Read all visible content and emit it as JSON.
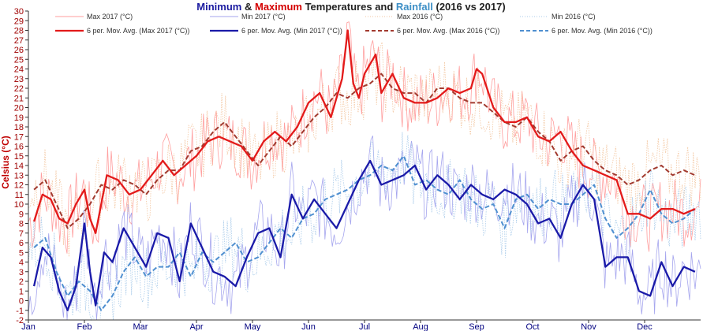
{
  "chart_data": {
    "type": "line",
    "title_runs": [
      {
        "text": "Minimum",
        "color": "#1a1aa0"
      },
      {
        "text": " & ",
        "color": "#222222"
      },
      {
        "text": "Maximum",
        "color": "#d40000"
      },
      {
        "text": " Temperatures and ",
        "color": "#222222"
      },
      {
        "text": "Rainfall",
        "color": "#3d8fc6"
      },
      {
        "text": " (2016 vs 2017)",
        "color": "#222222"
      }
    ],
    "ylabel": "Celsius (°C)",
    "ylim": [
      -2,
      30
    ],
    "yticks": [
      -2,
      -1,
      0,
      1,
      2,
      3,
      4,
      5,
      6,
      7,
      8,
      9,
      10,
      11,
      12,
      13,
      14,
      15,
      16,
      17,
      18,
      19,
      20,
      21,
      22,
      23,
      24,
      25,
      26,
      27,
      28,
      29,
      30
    ],
    "xlim": [
      0,
      12
    ],
    "months": [
      "Jan",
      "Feb",
      "Mar",
      "Apr",
      "May",
      "Jun",
      "Jul",
      "Aug",
      "Sep",
      "Oct",
      "Nov",
      "Dec"
    ],
    "grid": false,
    "legend_position": "top",
    "series": [
      {
        "name": "Max 2017 (°C)",
        "color": "#ff9e9e",
        "style": "thin",
        "key": "max17raw"
      },
      {
        "name": "Min 2017 (°C)",
        "color": "#a6a6ee",
        "style": "thin",
        "key": "min17raw"
      },
      {
        "name": "Max 2016 (°C)",
        "color": "#f3c6a0",
        "style": "thin-dot",
        "key": "max16raw"
      },
      {
        "name": "Min 2016 (°C)",
        "color": "#a9cbea",
        "style": "thin-dot",
        "key": "min16raw"
      },
      {
        "name": "6 per. Mov. Avg. (Max 2017 (°C))",
        "color": "#e31a1a",
        "style": "solid",
        "key": "max17ma",
        "x": [
          0.1,
          0.25,
          0.4,
          0.55,
          0.7,
          0.85,
          1.0,
          1.1,
          1.2,
          1.4,
          1.6,
          1.8,
          2.0,
          2.2,
          2.4,
          2.6,
          2.8,
          3.0,
          3.2,
          3.4,
          3.6,
          3.8,
          4.0,
          4.2,
          4.4,
          4.6,
          4.8,
          5.0,
          5.2,
          5.4,
          5.6,
          5.7,
          5.8,
          5.9,
          6.0,
          6.2,
          6.3,
          6.5,
          6.7,
          6.9,
          7.1,
          7.3,
          7.5,
          7.7,
          7.9,
          8.0,
          8.1,
          8.3,
          8.5,
          8.7,
          8.9,
          9.1,
          9.3,
          9.5,
          9.7,
          9.9,
          10.1,
          10.3,
          10.5,
          10.7,
          10.9,
          11.1,
          11.3,
          11.5,
          11.7,
          11.9
        ],
        "y": [
          8.2,
          11.0,
          10.5,
          8.5,
          8.0,
          10.0,
          11.5,
          8.5,
          7.0,
          13.0,
          12.5,
          11.0,
          11.5,
          13.0,
          14.5,
          13.0,
          14.0,
          15.0,
          16.5,
          17.0,
          16.5,
          16.0,
          14.5,
          16.5,
          17.5,
          16.5,
          18.0,
          20.5,
          21.5,
          19.0,
          23.0,
          28.0,
          22.5,
          21.0,
          23.5,
          25.5,
          21.5,
          23.5,
          21.0,
          20.5,
          20.5,
          21.0,
          22.0,
          21.5,
          22.0,
          24.0,
          23.5,
          20.0,
          18.5,
          18.5,
          19.0,
          17.0,
          16.5,
          17.5,
          15.5,
          14.0,
          13.5,
          13.0,
          12.5,
          9.0,
          9.0,
          8.5,
          9.5,
          9.5,
          9.0,
          9.5
        ]
      },
      {
        "name": "6 per. Mov. Avg. (Min 2017 (°C))",
        "color": "#1a1aa8",
        "style": "solid",
        "key": "min17ma",
        "x": [
          0.1,
          0.25,
          0.4,
          0.55,
          0.7,
          0.85,
          1.0,
          1.1,
          1.2,
          1.35,
          1.5,
          1.7,
          1.9,
          2.1,
          2.3,
          2.5,
          2.7,
          2.9,
          3.1,
          3.3,
          3.5,
          3.7,
          3.9,
          4.1,
          4.3,
          4.5,
          4.7,
          4.9,
          5.1,
          5.3,
          5.5,
          5.7,
          5.9,
          6.1,
          6.3,
          6.5,
          6.7,
          6.9,
          7.1,
          7.3,
          7.5,
          7.7,
          7.9,
          8.1,
          8.3,
          8.5,
          8.7,
          8.9,
          9.1,
          9.3,
          9.5,
          9.7,
          9.9,
          10.1,
          10.3,
          10.5,
          10.7,
          10.9,
          11.1,
          11.3,
          11.5,
          11.7,
          11.9
        ],
        "y": [
          1.5,
          5.5,
          4.5,
          1.0,
          -1.0,
          1.5,
          8.0,
          3.0,
          -0.5,
          5.0,
          4.0,
          7.5,
          5.5,
          3.5,
          7.0,
          6.5,
          2.0,
          8.0,
          5.5,
          3.0,
          2.5,
          1.5,
          4.5,
          7.0,
          7.5,
          4.5,
          11.0,
          8.5,
          10.5,
          9.0,
          7.5,
          10.0,
          12.5,
          14.5,
          12.0,
          12.5,
          13.0,
          14.0,
          11.5,
          13.0,
          12.0,
          10.5,
          12.0,
          11.0,
          10.5,
          11.5,
          11.0,
          10.0,
          8.0,
          8.5,
          6.5,
          10.0,
          12.0,
          10.5,
          3.5,
          4.5,
          4.5,
          1.0,
          0.5,
          4.0,
          1.5,
          3.5,
          3.0
        ]
      },
      {
        "name": "6 per. Mov. Avg. (Max 2016 (°C))",
        "color": "#a23a2f",
        "style": "dashed",
        "key": "max16ma",
        "x": [
          0.1,
          0.3,
          0.5,
          0.7,
          0.9,
          1.1,
          1.3,
          1.5,
          1.7,
          1.9,
          2.1,
          2.3,
          2.5,
          2.7,
          2.9,
          3.1,
          3.3,
          3.5,
          3.7,
          3.9,
          4.1,
          4.3,
          4.5,
          4.7,
          4.9,
          5.1,
          5.3,
          5.5,
          5.7,
          5.9,
          6.1,
          6.3,
          6.5,
          6.7,
          6.9,
          7.1,
          7.3,
          7.5,
          7.7,
          7.9,
          8.1,
          8.3,
          8.5,
          8.7,
          8.9,
          9.1,
          9.3,
          9.5,
          9.7,
          9.9,
          10.1,
          10.3,
          10.5,
          10.7,
          10.9,
          11.1,
          11.3,
          11.5,
          11.7,
          11.9
        ],
        "y": [
          11.5,
          12.5,
          10.0,
          7.5,
          8.5,
          10.0,
          12.0,
          11.5,
          12.5,
          12.0,
          11.0,
          12.5,
          13.5,
          13.5,
          15.5,
          16.0,
          17.5,
          18.5,
          17.0,
          15.5,
          14.0,
          15.5,
          17.0,
          16.0,
          17.5,
          19.0,
          20.0,
          21.5,
          21.0,
          22.0,
          22.5,
          23.5,
          22.0,
          21.5,
          21.5,
          20.5,
          22.0,
          22.0,
          21.0,
          20.5,
          20.5,
          19.5,
          18.5,
          18.0,
          19.0,
          17.5,
          16.5,
          14.5,
          15.5,
          16.0,
          14.5,
          13.5,
          13.0,
          12.0,
          12.5,
          13.5,
          14.0,
          13.0,
          13.5,
          13.0
        ]
      },
      {
        "name": "6 per. Mov. Avg. (Min 2016 (°C))",
        "color": "#4f8fd0",
        "style": "dashed",
        "key": "min16ma",
        "x": [
          0.1,
          0.3,
          0.5,
          0.7,
          0.9,
          1.1,
          1.3,
          1.5,
          1.7,
          1.9,
          2.1,
          2.3,
          2.5,
          2.7,
          2.9,
          3.1,
          3.3,
          3.5,
          3.7,
          3.9,
          4.1,
          4.3,
          4.5,
          4.7,
          4.9,
          5.1,
          5.3,
          5.5,
          5.7,
          5.9,
          6.1,
          6.3,
          6.5,
          6.7,
          6.9,
          7.1,
          7.3,
          7.5,
          7.7,
          7.9,
          8.1,
          8.3,
          8.5,
          8.7,
          8.9,
          9.1,
          9.3,
          9.5,
          9.7,
          9.9,
          10.1,
          10.3,
          10.5,
          10.7,
          10.9,
          11.1,
          11.3,
          11.5,
          11.7,
          11.9
        ],
        "y": [
          5.5,
          6.5,
          3.0,
          0.5,
          2.0,
          1.0,
          -1.0,
          0.5,
          3.0,
          4.5,
          2.5,
          3.5,
          3.5,
          5.0,
          2.5,
          5.0,
          4.0,
          5.0,
          6.0,
          4.0,
          4.5,
          6.0,
          7.5,
          6.5,
          8.5,
          9.0,
          10.5,
          11.0,
          11.5,
          12.5,
          13.0,
          14.0,
          13.5,
          15.0,
          12.0,
          12.5,
          11.5,
          11.0,
          12.5,
          10.5,
          9.5,
          10.0,
          7.5,
          10.5,
          11.0,
          9.5,
          10.5,
          10.0,
          10.0,
          11.0,
          12.0,
          8.5,
          6.5,
          7.5,
          9.0,
          11.5,
          9.0,
          8.0,
          8.5,
          9.5
        ]
      }
    ]
  }
}
